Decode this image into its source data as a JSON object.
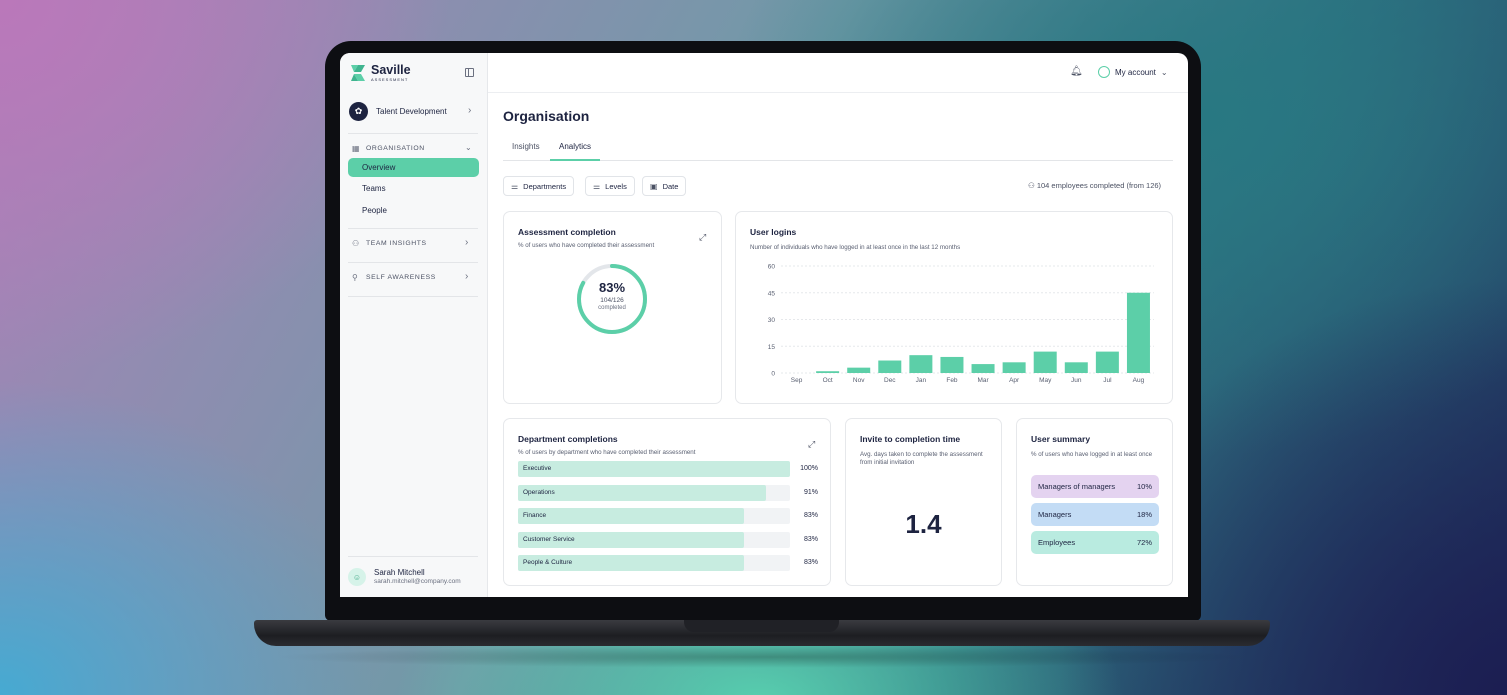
{
  "brand": {
    "name": "Saville",
    "sub": "ASSESSMENT",
    "accent": "#5ccfa8"
  },
  "sidebar": {
    "workspace": "Talent Development",
    "sections": [
      {
        "label": "ORGANISATION",
        "icon": "grid-icon",
        "expanded": true,
        "items": [
          {
            "label": "Overview",
            "active": true
          },
          {
            "label": "Teams"
          },
          {
            "label": "People"
          }
        ]
      },
      {
        "label": "TEAM INSIGHTS",
        "icon": "users-icon"
      },
      {
        "label": "SELF AWARENESS",
        "icon": "user-icon"
      }
    ],
    "user": {
      "name": "Sarah Mitchell",
      "email": "sarah.mitchell@company.com"
    }
  },
  "header": {
    "account": "My account"
  },
  "page": {
    "title": "Organisation",
    "tabs": [
      {
        "label": "Insights"
      },
      {
        "label": "Analytics",
        "active": true
      }
    ],
    "filters": [
      "Departments",
      "Levels",
      "Date"
    ],
    "employees_text": "104 employees completed (from 126)"
  },
  "assessment": {
    "title": "Assessment completion",
    "subtitle": "% of users who have completed their assessment",
    "percent_label": "83%",
    "fraction": "104/126",
    "completed_label": "completed",
    "percent": 83
  },
  "logins": {
    "title": "User logins",
    "subtitle": "Number of individuals who have logged in at least once in the last 12 months"
  },
  "chart_data": {
    "type": "bar",
    "title": "User logins",
    "categories": [
      "Sep",
      "Oct",
      "Nov",
      "Dec",
      "Jan",
      "Feb",
      "Mar",
      "Apr",
      "May",
      "Jun",
      "Jul",
      "Aug"
    ],
    "values": [
      0,
      1,
      3,
      7,
      10,
      9,
      5,
      6,
      12,
      6,
      12,
      45
    ],
    "ylim": [
      0,
      60
    ],
    "yticks": [
      0,
      15,
      30,
      45,
      60
    ],
    "grid": true,
    "color": "#5ccfa8"
  },
  "departments": {
    "title": "Department completions",
    "subtitle": "% of users by department who have completed their assessment",
    "rows": [
      {
        "name": "Executive",
        "label": "100%",
        "pct": 100
      },
      {
        "name": "Operations",
        "label": "91%",
        "pct": 91
      },
      {
        "name": "Finance",
        "label": "83%",
        "pct": 83
      },
      {
        "name": "Customer Service",
        "label": "83%",
        "pct": 83
      },
      {
        "name": "People & Culture",
        "label": "83%",
        "pct": 83
      }
    ]
  },
  "invite": {
    "title": "Invite to completion time",
    "subtitle": "Avg. days taken to complete the assessment from initial invitation",
    "value": "1.4"
  },
  "summary": {
    "title": "User summary",
    "subtitle": "% of users who have logged in at least once",
    "rows": [
      {
        "label": "Managers of managers",
        "value": "10%",
        "color": "#e4d3f0"
      },
      {
        "label": "Managers",
        "value": "18%",
        "color": "#c3dcf5"
      },
      {
        "label": "Employees",
        "value": "72%",
        "color": "#b9ebe0"
      }
    ]
  }
}
